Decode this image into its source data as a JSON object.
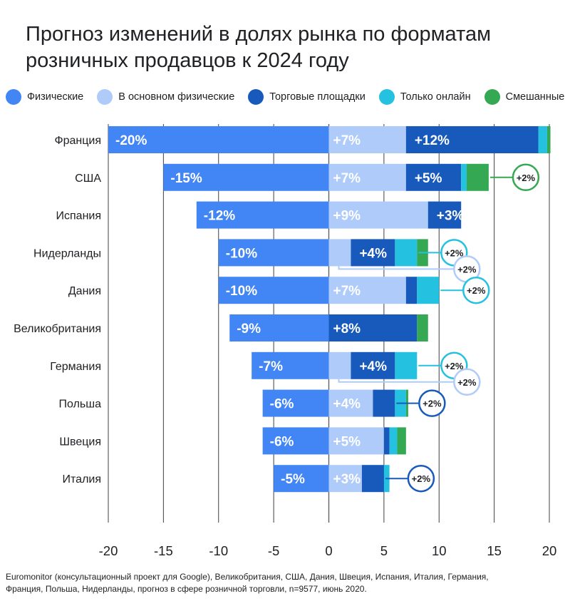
{
  "title": [
    "Прогноз изменений в долях рынка по форматам",
    "розничных продавцов к 2024 году"
  ],
  "legend": [
    {
      "name": "Физические",
      "color": "#4285f4"
    },
    {
      "name": "В основном физические",
      "color": "#aecbfa"
    },
    {
      "name": "Торговые площадки",
      "color": "#185abc"
    },
    {
      "name": "Только онлайн",
      "color": "#24c1e0"
    },
    {
      "name": "Смешанные",
      "color": "#34a853"
    }
  ],
  "source": [
    "Euromonitor (консультационный проект для Google), Великобритания, США, Дания, Швеция, Испания, Италия, Германия,",
    "Франция, Польша, Нидерланды, прогноз в сфере розничной торговли, n=9577, июнь 2020."
  ],
  "chart_data": {
    "type": "bar",
    "orientation": "horizontal",
    "stacked": true,
    "xlim": [
      -20,
      20
    ],
    "xticks": [
      -20,
      -15,
      -10,
      -5,
      0,
      5,
      10,
      15,
      20
    ],
    "grid": "vertical",
    "legend_position": "top",
    "categories": [
      "Франция",
      "США",
      "Испания",
      "Нидерланды",
      "Дания",
      "Великобритания",
      "Германия",
      "Польша",
      "Швеция",
      "Италия"
    ],
    "series": [
      {
        "name": "Физические",
        "color": "#4285f4",
        "values": [
          -20,
          -15,
          -12,
          -10,
          -10,
          -9,
          -7,
          -6,
          -6,
          -5
        ],
        "labels": [
          "-20%",
          "-15%",
          "-12%",
          "-10%",
          "-10%",
          "-9%",
          "-7%",
          "-6%",
          "-6%",
          "-5%"
        ]
      },
      {
        "name": "В основном физические",
        "color": "#aecbfa",
        "values": [
          7,
          7,
          9,
          2,
          7,
          0,
          2,
          4,
          5,
          3
        ],
        "labels": [
          "+7%",
          "+7%",
          "+9%",
          "",
          "+7%",
          "",
          "",
          "+4%",
          "+5%",
          "+3%"
        ]
      },
      {
        "name": "Торговые площадки",
        "color": "#185abc",
        "values": [
          12,
          5,
          3,
          4,
          1,
          8,
          4,
          2,
          0.5,
          2
        ],
        "labels": [
          "+12%",
          "+5%",
          "+3%",
          "+4%",
          "",
          "+8%",
          "+4%",
          "",
          "",
          ""
        ]
      },
      {
        "name": "Только онлайн",
        "color": "#24c1e0",
        "values": [
          0.8,
          0.5,
          0,
          2,
          2,
          0,
          2,
          1,
          0.7,
          0.5
        ],
        "labels": [
          "",
          "",
          "",
          "",
          "",
          "",
          "",
          "",
          "",
          ""
        ]
      },
      {
        "name": "Смешанные",
        "color": "#34a853",
        "values": [
          0.3,
          2,
          0,
          1,
          0,
          1,
          0,
          0.2,
          0.8,
          0
        ],
        "labels": [
          "",
          "",
          "",
          "",
          "",
          "",
          "",
          "",
          "",
          ""
        ]
      }
    ],
    "callouts": [
      {
        "category": "США",
        "series": "Смешанные",
        "text": "+2%",
        "color": "#34a853"
      },
      {
        "category": "Нидерланды",
        "series": "Только онлайн",
        "text": "+2%",
        "color": "#24c1e0"
      },
      {
        "category": "Нидерланды",
        "series": "В основном физические",
        "text": "+2%",
        "color": "#aecbfa"
      },
      {
        "category": "Дания",
        "series": "Только онлайн",
        "text": "+2%",
        "color": "#24c1e0"
      },
      {
        "category": "Германия",
        "series": "Только онлайн",
        "text": "+2%",
        "color": "#24c1e0"
      },
      {
        "category": "Германия",
        "series": "В основном физические",
        "text": "+2%",
        "color": "#aecbfa"
      },
      {
        "category": "Польша",
        "series": "Торговые площадки",
        "text": "+2%",
        "color": "#185abc"
      },
      {
        "category": "Италия",
        "series": "Торговые площадки",
        "text": "+2%",
        "color": "#185abc"
      }
    ]
  }
}
